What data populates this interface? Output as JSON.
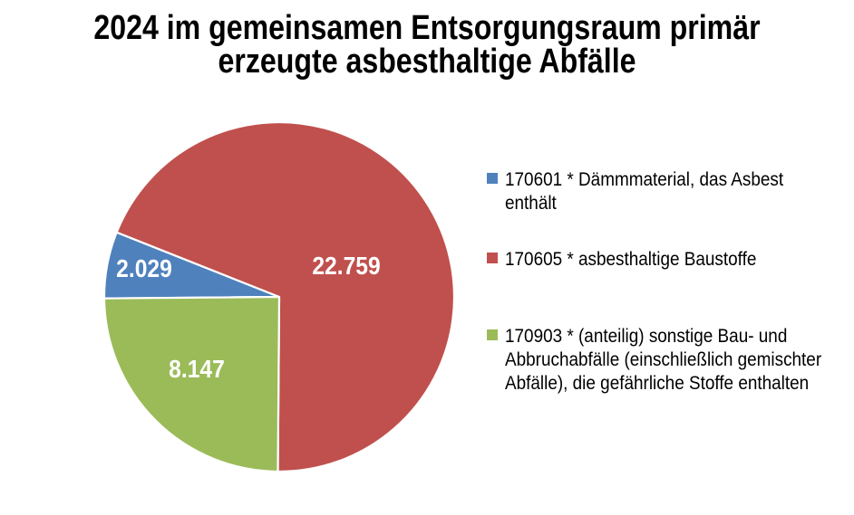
{
  "title": {
    "line1": "2024 im gemeinsamen Entsorgungsraum primär",
    "line2": "erzeugte asbesthaltige Abfälle"
  },
  "chart_data": {
    "type": "pie",
    "first_slice_angle": 269.5,
    "legend_position": "right",
    "background_color": "#ffffff",
    "value_label_color": "#ffffff",
    "slices": [
      {
        "name": "170601 * Dämmmaterial, das Asbest enthält",
        "code": "170601",
        "value": 2029,
        "value_label": "2.029",
        "color": "#4F81BD",
        "legend_lines": [
          "170601 * Dämmmaterial, das Asbest",
          "enthält"
        ]
      },
      {
        "name": "170605 * asbesthaltige Baustoffe",
        "code": "170605",
        "value": 22759,
        "value_label": "22.759",
        "color": "#C0504D",
        "legend_lines": [
          "170605 * asbesthaltige Baustoffe"
        ]
      },
      {
        "name": "170903 * (anteilig) sonstige Bau- und Abbruchabfälle (einschließlich gemischter Abfälle), die gefährliche Stoffe enthalten",
        "code": "170903",
        "value": 8147,
        "value_label": "8.147",
        "color": "#9BBB59",
        "legend_lines": [
          "170903 * (anteilig) sonstige Bau- und",
          "Abbruchabfälle (einschließlich gemischter",
          "Abfälle), die gefährliche Stoffe enthalten"
        ]
      }
    ]
  }
}
